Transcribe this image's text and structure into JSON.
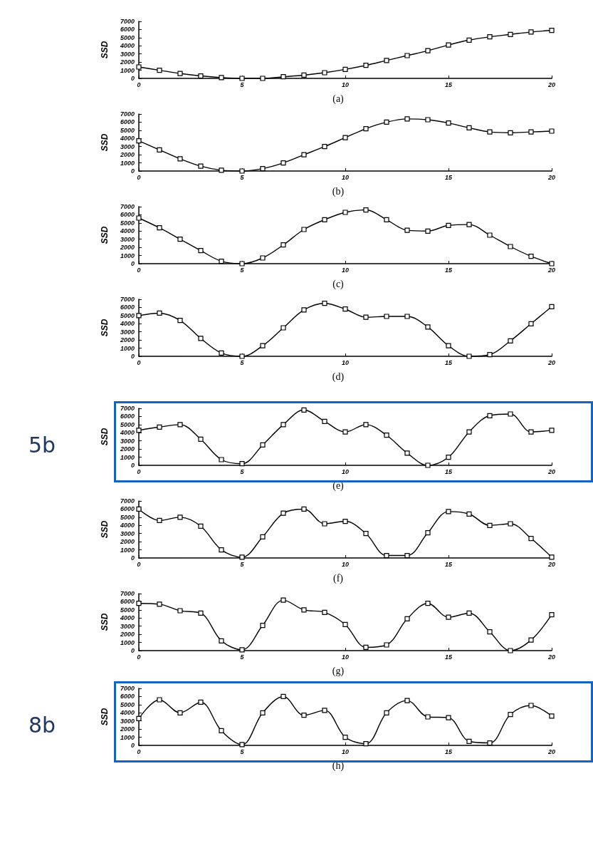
{
  "chart_data": [
    {
      "type": "line",
      "title": "(a)",
      "ylabel": "SSD",
      "x": [
        0,
        1,
        2,
        3,
        4,
        5,
        6,
        7,
        8,
        9,
        10,
        11,
        12,
        13,
        14,
        15,
        16,
        17,
        18,
        19,
        20
      ],
      "xlim": [
        0,
        20
      ],
      "xticks": [
        0,
        5,
        10,
        15,
        20
      ],
      "ylim": [
        0,
        7000
      ],
      "yticks": [
        0,
        1000,
        2000,
        3000,
        4000,
        5000,
        6000,
        7000
      ],
      "marker": "square",
      "line_style": "solid",
      "color": "#000000",
      "values": [
        1400,
        1000,
        600,
        300,
        100,
        0,
        0,
        200,
        400,
        700,
        1100,
        1600,
        2200,
        2800,
        3400,
        4100,
        4700,
        5100,
        5400,
        5700,
        5900
      ]
    },
    {
      "type": "line",
      "title": "(b)",
      "ylabel": "SSD",
      "x": [
        0,
        1,
        2,
        3,
        4,
        5,
        6,
        7,
        8,
        9,
        10,
        11,
        12,
        13,
        14,
        15,
        16,
        17,
        18,
        19,
        20
      ],
      "xlim": [
        0,
        20
      ],
      "xticks": [
        0,
        5,
        10,
        15,
        20
      ],
      "ylim": [
        0,
        7000
      ],
      "yticks": [
        0,
        1000,
        2000,
        3000,
        4000,
        5000,
        6000,
        7000
      ],
      "marker": "square",
      "line_style": "solid",
      "color": "#000000",
      "values": [
        3700,
        2600,
        1500,
        600,
        100,
        0,
        300,
        1000,
        2000,
        3000,
        4100,
        5200,
        6000,
        6400,
        6300,
        5900,
        5300,
        4800,
        4700,
        4800,
        4900
      ]
    },
    {
      "type": "line",
      "title": "(c)",
      "ylabel": "SSD",
      "x": [
        0,
        1,
        2,
        3,
        4,
        5,
        6,
        7,
        8,
        9,
        10,
        11,
        12,
        13,
        14,
        15,
        16,
        17,
        18,
        19,
        20
      ],
      "xlim": [
        0,
        20
      ],
      "xticks": [
        0,
        5,
        10,
        15,
        20
      ],
      "ylim": [
        0,
        7000
      ],
      "yticks": [
        0,
        1000,
        2000,
        3000,
        4000,
        5000,
        6000,
        7000
      ],
      "marker": "square",
      "line_style": "solid",
      "color": "#000000",
      "values": [
        5600,
        4400,
        3000,
        1600,
        300,
        0,
        700,
        2300,
        4200,
        5400,
        6300,
        6600,
        5400,
        4100,
        4000,
        4700,
        4800,
        3500,
        2100,
        900,
        0
      ]
    },
    {
      "type": "line",
      "title": "(d)",
      "ylabel": "SSD",
      "x": [
        0,
        1,
        2,
        3,
        4,
        5,
        6,
        7,
        8,
        9,
        10,
        11,
        12,
        13,
        14,
        15,
        16,
        17,
        18,
        19,
        20
      ],
      "xlim": [
        0,
        20
      ],
      "xticks": [
        0,
        5,
        10,
        15,
        20
      ],
      "ylim": [
        0,
        7000
      ],
      "yticks": [
        0,
        1000,
        2000,
        3000,
        4000,
        5000,
        6000,
        7000
      ],
      "marker": "square",
      "line_style": "solid",
      "color": "#000000",
      "values": [
        5000,
        5300,
        4400,
        2200,
        400,
        0,
        1300,
        3500,
        5700,
        6500,
        5800,
        4800,
        4900,
        4900,
        3600,
        1300,
        0,
        200,
        1900,
        4000,
        6100
      ]
    },
    {
      "type": "line",
      "title": "(e)",
      "ylabel": "SSD",
      "annotations": [
        "5b"
      ],
      "x": [
        0,
        1,
        2,
        3,
        4,
        5,
        6,
        7,
        8,
        9,
        10,
        11,
        12,
        13,
        14,
        15,
        16,
        17,
        18,
        19,
        20
      ],
      "xlim": [
        0,
        20
      ],
      "xticks": [
        0,
        5,
        10,
        15,
        20
      ],
      "ylim": [
        0,
        7000
      ],
      "yticks": [
        0,
        1000,
        2000,
        3000,
        4000,
        5000,
        6000,
        7000
      ],
      "marker": "square",
      "line_style": "solid",
      "color": "#000000",
      "values": [
        4300,
        4700,
        5000,
        3200,
        700,
        200,
        2500,
        5000,
        6800,
        5400,
        4100,
        5000,
        3700,
        1500,
        0,
        1000,
        4100,
        6100,
        6300,
        4100,
        4300
      ]
    },
    {
      "type": "line",
      "title": "(f)",
      "ylabel": "SSD",
      "x": [
        0,
        1,
        2,
        3,
        4,
        5,
        6,
        7,
        8,
        9,
        10,
        11,
        12,
        13,
        14,
        15,
        16,
        17,
        18,
        19,
        20
      ],
      "xlim": [
        0,
        20
      ],
      "xticks": [
        0,
        5,
        10,
        15,
        20
      ],
      "ylim": [
        0,
        7000
      ],
      "yticks": [
        0,
        1000,
        2000,
        3000,
        4000,
        5000,
        6000,
        7000
      ],
      "marker": "square",
      "line_style": "solid",
      "color": "#000000",
      "values": [
        6000,
        4600,
        5000,
        3900,
        1000,
        100,
        2600,
        5500,
        6000,
        4200,
        4500,
        3000,
        300,
        300,
        3100,
        5700,
        5400,
        4000,
        4200,
        2400,
        100
      ]
    },
    {
      "type": "line",
      "title": "(g)",
      "ylabel": "SSD",
      "x": [
        0,
        1,
        2,
        3,
        4,
        5,
        6,
        7,
        8,
        9,
        10,
        11,
        12,
        13,
        14,
        15,
        16,
        17,
        18,
        19,
        20
      ],
      "xlim": [
        0,
        20
      ],
      "xticks": [
        0,
        5,
        10,
        15,
        20
      ],
      "ylim": [
        0,
        7000
      ],
      "yticks": [
        0,
        1000,
        2000,
        3000,
        4000,
        5000,
        6000,
        7000
      ],
      "marker": "square",
      "line_style": "solid",
      "color": "#000000",
      "values": [
        5800,
        5700,
        4900,
        4600,
        1200,
        100,
        3100,
        6200,
        5000,
        4700,
        3200,
        400,
        700,
        3900,
        5800,
        4100,
        4600,
        2300,
        0,
        1300,
        4400
      ]
    },
    {
      "type": "line",
      "title": "(h)",
      "ylabel": "SSD",
      "annotations": [
        "8b"
      ],
      "x": [
        0,
        1,
        2,
        3,
        4,
        5,
        6,
        7,
        8,
        9,
        10,
        11,
        12,
        13,
        14,
        15,
        16,
        17,
        18,
        19,
        20
      ],
      "xlim": [
        0,
        20
      ],
      "xticks": [
        0,
        5,
        10,
        15,
        20
      ],
      "ylim": [
        0,
        7000
      ],
      "yticks": [
        0,
        1000,
        2000,
        3000,
        4000,
        5000,
        6000,
        7000
      ],
      "marker": "square",
      "line_style": "solid",
      "color": "#000000",
      "values": [
        3300,
        5600,
        4000,
        5300,
        1800,
        100,
        4000,
        6000,
        3700,
        4300,
        1000,
        200,
        4000,
        5500,
        3500,
        3400,
        500,
        300,
        3800,
        4900,
        3600
      ]
    }
  ]
}
